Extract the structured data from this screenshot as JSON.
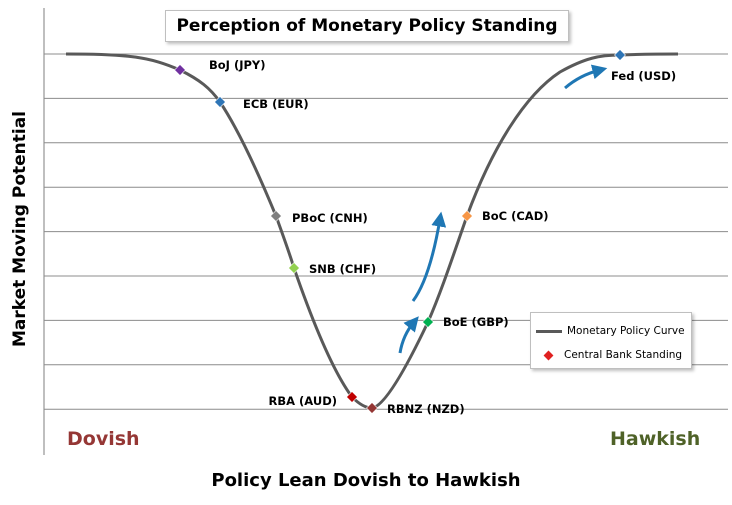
{
  "chart_data": {
    "type": "line",
    "title": "Perception of Monetary Policy Standing",
    "xlabel": "Policy Lean Dovish to Hawkish",
    "ylabel": "Market Moving Potential",
    "x_left_label": "Dovish",
    "x_right_label": "Hawkish",
    "grid": true,
    "y_gridlines": 9,
    "legend_position": "right",
    "legend": [
      {
        "name": "Monetary Policy Curve",
        "kind": "line",
        "color": "#595959"
      },
      {
        "name": "Central Bank Standing",
        "kind": "marker",
        "color": "#e02020"
      }
    ],
    "points": [
      {
        "label": "BoJ (JPY)",
        "color": "#7030a0"
      },
      {
        "label": "ECB (EUR)",
        "color": "#2e75b6"
      },
      {
        "label": "PBoC (CNH)",
        "color": "#7f7f7f"
      },
      {
        "label": "SNB (CHF)",
        "color": "#92d050"
      },
      {
        "label": "RBA (AUD)",
        "color": "#c00000"
      },
      {
        "label": "RBNZ (NZD)",
        "color": "#943634"
      },
      {
        "label": "BoE (GBP)",
        "color": "#00b050"
      },
      {
        "label": "BoC (CAD)",
        "color": "#f79646"
      },
      {
        "label": "Fed (USD)",
        "color": "#2e75b6"
      }
    ],
    "arrow_color": "#1f77b4"
  }
}
